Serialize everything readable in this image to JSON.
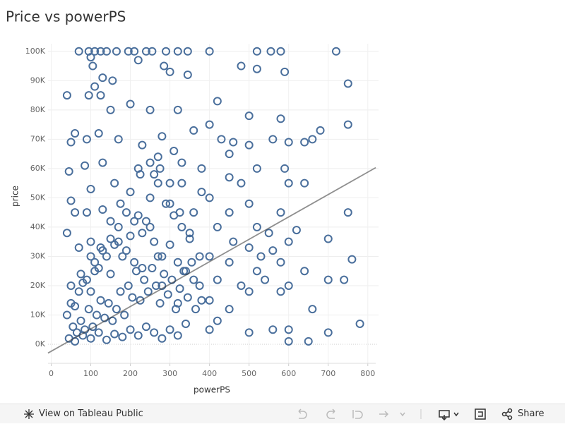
{
  "chart_data": {
    "type": "scatter",
    "title": "Price vs powerPS",
    "x_label": "powerPS",
    "y_label": "price",
    "color": "#4a6f9c",
    "xlim": [
      -8,
      820
    ],
    "ylim": [
      -6500,
      102600
    ],
    "xticks": [
      0,
      100,
      200,
      300,
      400,
      500,
      600,
      700,
      800
    ],
    "yticks": [
      {
        "value": 0,
        "label": "0K"
      },
      {
        "value": 10000,
        "label": "10K"
      },
      {
        "value": 20000,
        "label": "20K"
      },
      {
        "value": 30000,
        "label": "30K"
      },
      {
        "value": 40000,
        "label": "40K"
      },
      {
        "value": 50000,
        "label": "50K"
      },
      {
        "value": 60000,
        "label": "60K"
      },
      {
        "value": 70000,
        "label": "70K"
      },
      {
        "value": 80000,
        "label": "80K"
      },
      {
        "value": 90000,
        "label": "90K"
      },
      {
        "value": 100000,
        "label": "100K"
      }
    ],
    "grid": true,
    "x": [
      70,
      95,
      110,
      125,
      140,
      165,
      195,
      210,
      240,
      255,
      290,
      320,
      345,
      400,
      520,
      555,
      580,
      720,
      100,
      105,
      130,
      110,
      155,
      220,
      285,
      300,
      345,
      480,
      520,
      590,
      750,
      40,
      95,
      125,
      150,
      200,
      250,
      320,
      420,
      500,
      580,
      680,
      750,
      60,
      90,
      50,
      120,
      170,
      230,
      280,
      310,
      360,
      430,
      460,
      500,
      560,
      600,
      640,
      660,
      45,
      85,
      100,
      130,
      160,
      220,
      270,
      330,
      380,
      450,
      520,
      590,
      600,
      640,
      50,
      60,
      90,
      620,
      700,
      750,
      760,
      740,
      700,
      640,
      660,
      700,
      780,
      600,
      650,
      600,
      560,
      40,
      70,
      100,
      110,
      45,
      55,
      65,
      75,
      85,
      95,
      105,
      115,
      125,
      135,
      145,
      155,
      165,
      175,
      185,
      195,
      205,
      215,
      225,
      235,
      245,
      255,
      265,
      275,
      285,
      295,
      305,
      315,
      325,
      335,
      345,
      355,
      365,
      375,
      50,
      70,
      90,
      110,
      130,
      150,
      170,
      190,
      210,
      230,
      250,
      270,
      290,
      310,
      330,
      350,
      60,
      80,
      100,
      120,
      140,
      160,
      180,
      200,
      220,
      240,
      260,
      280,
      300,
      320,
      340,
      50,
      75,
      100,
      125,
      150,
      175,
      200,
      225,
      250,
      275,
      300,
      325,
      350,
      375,
      40,
      60,
      80,
      100,
      120,
      140,
      160,
      180,
      200,
      220,
      240,
      260,
      280,
      300,
      320,
      340,
      360,
      380,
      400,
      400,
      400,
      400,
      400,
      420,
      420,
      420,
      450,
      450,
      450,
      450,
      460,
      480,
      480,
      500,
      500,
      500,
      500,
      520,
      520,
      530,
      540,
      550,
      560,
      580,
      580,
      580,
      600,
      600,
      130,
      170,
      210,
      250,
      260,
      270,
      300,
      330,
      360,
      380,
      150,
      190,
      230,
      280,
      320
    ],
    "values": [
      100000,
      100000,
      100000,
      100000,
      100000,
      100000,
      100000,
      100000,
      100000,
      100000,
      100000,
      100000,
      100000,
      100000,
      100000,
      100000,
      100000,
      100000,
      98000,
      95000,
      91000,
      88000,
      90000,
      97000,
      95000,
      93000,
      92000,
      95000,
      94000,
      93000,
      89000,
      85000,
      85000,
      85000,
      80000,
      82000,
      80000,
      80000,
      83000,
      78000,
      77000,
      73000,
      75000,
      72000,
      70000,
      69000,
      72000,
      70000,
      68000,
      71000,
      66000,
      73000,
      70000,
      69000,
      68000,
      70000,
      69000,
      69000,
      70000,
      59000,
      61000,
      53000,
      62000,
      55000,
      60000,
      64000,
      55000,
      60000,
      57000,
      60000,
      60000,
      55000,
      55000,
      49000,
      45000,
      45000,
      39000,
      36000,
      45000,
      29000,
      22000,
      22000,
      25000,
      12000,
      4000,
      7000,
      1000,
      1000,
      5000,
      5000,
      38000,
      33000,
      30000,
      25000,
      2000,
      6000,
      4000,
      8000,
      5000,
      12000,
      6000,
      10000,
      15000,
      9000,
      14000,
      8000,
      12000,
      18000,
      10000,
      20000,
      16000,
      25000,
      15000,
      22000,
      18000,
      26000,
      20000,
      14000,
      24000,
      17000,
      22000,
      12000,
      19000,
      25000,
      16000,
      28000,
      12000,
      20000,
      14000,
      18000,
      22000,
      28000,
      32000,
      36000,
      40000,
      45000,
      42000,
      38000,
      50000,
      55000,
      48000,
      44000,
      40000,
      36000,
      1000,
      3000,
      2000,
      4000,
      1500,
      3500,
      2500,
      5000,
      3000,
      6000,
      4000,
      2000,
      5000,
      3000,
      7000,
      20000,
      24000,
      35000,
      33000,
      42000,
      48000,
      52000,
      58000,
      62000,
      60000,
      55000,
      45000,
      38000,
      30000,
      10000,
      13000,
      21000,
      18000,
      26000,
      30000,
      34000,
      30000,
      37000,
      44000,
      42000,
      35000,
      30000,
      34000,
      28000,
      25000,
      22000,
      15000,
      5000,
      15000,
      30000,
      50000,
      75000,
      8000,
      22000,
      40000,
      12000,
      28000,
      45000,
      65000,
      35000,
      20000,
      55000,
      4000,
      18000,
      33000,
      48000,
      25000,
      40000,
      30000,
      22000,
      38000,
      32000,
      18000,
      28000,
      45000,
      20000,
      35000,
      46000,
      35000,
      28000,
      40000,
      58000,
      30000,
      48000,
      62000,
      45000,
      52000,
      24000,
      32000,
      26000,
      20000,
      14000
    ],
    "trend_line": {
      "x": [
        -8,
        820
      ],
      "values": [
        -3000,
        60300
      ]
    },
    "toolbar": {
      "view": "View on Tableau Public",
      "share": "Share"
    }
  }
}
